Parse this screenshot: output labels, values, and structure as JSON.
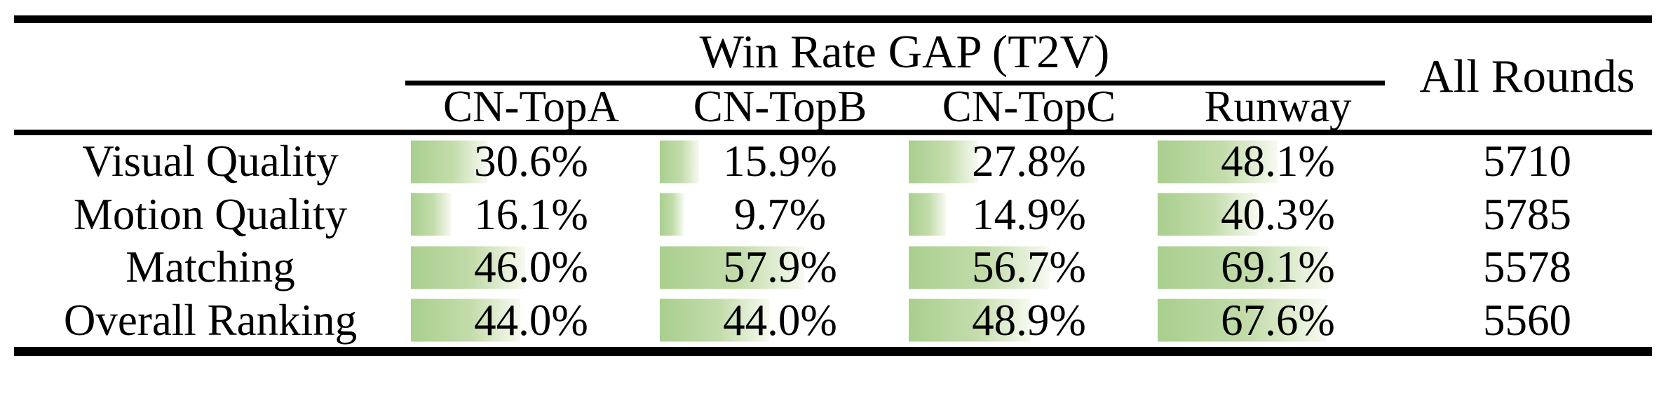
{
  "header": {
    "group": "Win Rate GAP (T2V)",
    "all_rounds": "All Rounds",
    "columns": [
      "CN-TopA",
      "CN-TopB",
      "CN-TopC",
      "Runway"
    ]
  },
  "rows": [
    {
      "label": "Visual Quality",
      "cells": [
        {
          "text": "30.6%",
          "pct": 30.6
        },
        {
          "text": "15.9%",
          "pct": 15.9
        },
        {
          "text": "27.8%",
          "pct": 27.8
        },
        {
          "text": "48.1%",
          "pct": 48.1
        }
      ],
      "all_rounds": "5710"
    },
    {
      "label": "Motion Quality",
      "cells": [
        {
          "text": "16.1%",
          "pct": 16.1
        },
        {
          "text": "9.7%",
          "pct": 9.7
        },
        {
          "text": "14.9%",
          "pct": 14.9
        },
        {
          "text": "40.3%",
          "pct": 40.3
        }
      ],
      "all_rounds": "5785"
    },
    {
      "label": "Matching",
      "cells": [
        {
          "text": "46.0%",
          "pct": 46.0
        },
        {
          "text": "57.9%",
          "pct": 57.9
        },
        {
          "text": "56.7%",
          "pct": 56.7
        },
        {
          "text": "69.1%",
          "pct": 69.1
        }
      ],
      "all_rounds": "5578"
    },
    {
      "label": "Overall Ranking",
      "cells": [
        {
          "text": "44.0%",
          "pct": 44.0
        },
        {
          "text": "44.0%",
          "pct": 44.0
        },
        {
          "text": "48.9%",
          "pct": 48.9
        },
        {
          "text": "67.6%",
          "pct": 67.6
        }
      ],
      "all_rounds": "5560"
    }
  ],
  "colors": {
    "bar_green": "#a9cf8e",
    "bar_mid": "#c3dcab",
    "bar_fade": "#f7faf1",
    "rule": "#000000",
    "text": "#000000"
  },
  "chart_data": {
    "type": "table",
    "title": "Win Rate GAP (T2V)",
    "columns": [
      "CN-TopA",
      "CN-TopB",
      "CN-TopC",
      "Runway",
      "All Rounds"
    ],
    "row_labels": [
      "Visual Quality",
      "Motion Quality",
      "Matching",
      "Overall Ranking"
    ],
    "win_rate_gap_percent": {
      "Visual Quality": [
        30.6,
        15.9,
        27.8,
        48.1
      ],
      "Motion Quality": [
        16.1,
        9.7,
        14.9,
        40.3
      ],
      "Matching": [
        46.0,
        57.9,
        56.7,
        69.1
      ],
      "Overall Ranking": [
        44.0,
        44.0,
        48.9,
        67.6
      ]
    },
    "all_rounds": [
      5710,
      5785,
      5578,
      5560
    ]
  }
}
